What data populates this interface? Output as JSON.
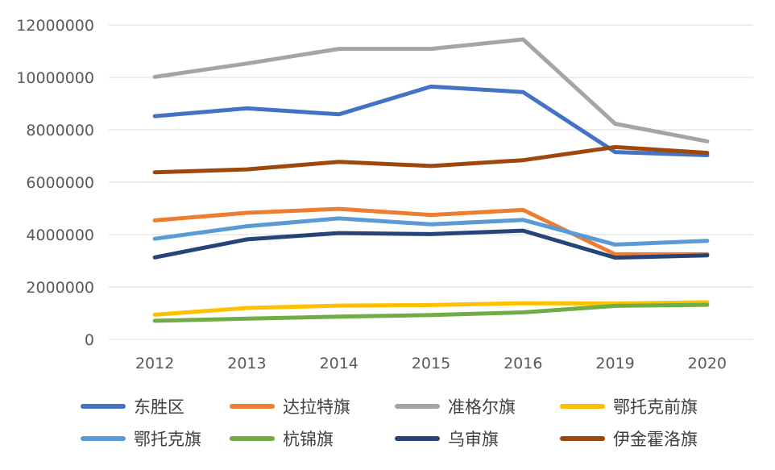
{
  "chart_data": {
    "type": "line",
    "title": "",
    "xlabel": "",
    "ylabel": "",
    "categories": [
      "2012",
      "2013",
      "2014",
      "2015",
      "2016",
      "2019",
      "2020"
    ],
    "ylim": [
      0,
      12000000
    ],
    "yticks": [
      0,
      2000000,
      4000000,
      6000000,
      8000000,
      10000000,
      12000000
    ],
    "ytick_labels": [
      "0",
      "2000000",
      "4000000",
      "6000000",
      "8000000",
      "10000000",
      "12000000"
    ],
    "grid": true,
    "legend_position": "bottom",
    "series": [
      {
        "name": "东胜区",
        "color": "#4472c4",
        "values": [
          8520000,
          8820000,
          8590000,
          9650000,
          9440000,
          7150000,
          7030000
        ]
      },
      {
        "name": "达拉特旗",
        "color": "#ed7d31",
        "values": [
          4540000,
          4830000,
          4980000,
          4750000,
          4940000,
          3250000,
          3250000
        ]
      },
      {
        "name": "准格尔旗",
        "color": "#a5a5a5",
        "values": [
          10020000,
          10530000,
          11090000,
          11090000,
          11450000,
          8230000,
          7560000
        ]
      },
      {
        "name": "鄂托克前旗",
        "color": "#ffc000",
        "values": [
          940000,
          1200000,
          1290000,
          1310000,
          1380000,
          1370000,
          1420000
        ]
      },
      {
        "name": "鄂托克旗",
        "color": "#5b9bd5",
        "values": [
          3840000,
          4320000,
          4620000,
          4390000,
          4560000,
          3620000,
          3760000
        ]
      },
      {
        "name": "杭锦旗",
        "color": "#70ad47",
        "values": [
          710000,
          790000,
          870000,
          930000,
          1030000,
          1280000,
          1320000
        ]
      },
      {
        "name": "乌审旗",
        "color": "#264478",
        "values": [
          3130000,
          3820000,
          4060000,
          4020000,
          4150000,
          3120000,
          3210000
        ]
      },
      {
        "name": "伊金霍洛旗",
        "color": "#9e480e",
        "values": [
          6380000,
          6490000,
          6780000,
          6620000,
          6840000,
          7340000,
          7120000
        ]
      }
    ]
  }
}
